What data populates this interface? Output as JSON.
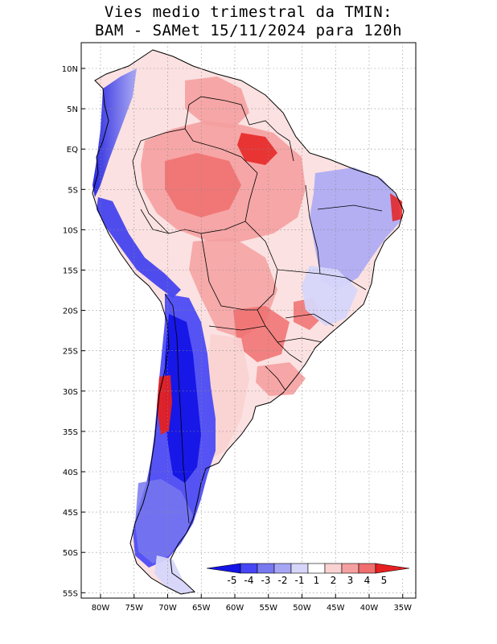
{
  "title": {
    "line1": "Vies medio trimestral da TMIN:",
    "line2": "BAM - SAMet 15/11/2024  para 120h"
  },
  "axes": {
    "lon_labels": [
      "80W",
      "75W",
      "70W",
      "65W",
      "60W",
      "55W",
      "50W",
      "45W",
      "40W",
      "35W"
    ],
    "lat_labels": [
      "10N",
      "5N",
      "EQ",
      "5S",
      "10S",
      "15S",
      "20S",
      "25S",
      "30S",
      "35S",
      "40S",
      "45S",
      "50S",
      "55S"
    ],
    "grid": "dotted"
  },
  "colorbar": {
    "labels": [
      "-5",
      "-4",
      "-3",
      "-2",
      "-1",
      "1",
      "2",
      "3",
      "4",
      "5"
    ],
    "colors": [
      "#1414e6",
      "#4646f5",
      "#7878f0",
      "#a6a6f5",
      "#d6d6fa",
      "#ffffff",
      "#fad2d2",
      "#f5a0a0",
      "#f06e6e",
      "#e62020"
    ],
    "placement": "bottom-right"
  },
  "colors": {
    "border": "#000000",
    "warm": "#f06e6e",
    "cold": "#3c3cf0"
  }
}
